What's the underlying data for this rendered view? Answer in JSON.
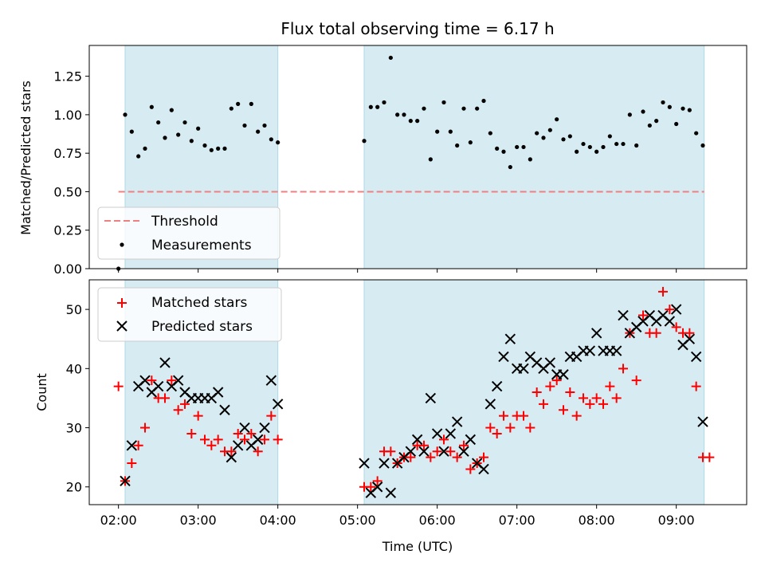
{
  "chart_data": [
    {
      "type": "scatter",
      "title": "Flux total observing time = 6.17 h",
      "xlabel": "",
      "ylabel": "Matched/Predicted stars",
      "xlim": [
        "01:38",
        "09:53"
      ],
      "ylim": [
        0,
        1.45
      ],
      "yticks": [
        "0.00",
        "0.25",
        "0.50",
        "0.75",
        "1.00",
        "1.25"
      ],
      "shaded_intervals": [
        [
          "02:05",
          "04:00"
        ],
        [
          "05:05",
          "09:21"
        ]
      ],
      "threshold": {
        "name": "Threshold",
        "value": 0.5,
        "x_range": [
          "02:00",
          "09:21"
        ],
        "color": "#f08080"
      },
      "legend": {
        "position": "lower-left",
        "entries": [
          "Threshold",
          "Measurements"
        ]
      },
      "series": [
        {
          "name": "Measurements",
          "color": "#000000",
          "marker": "dot",
          "x": [
            "02:00",
            "02:05",
            "02:10",
            "02:15",
            "02:20",
            "02:25",
            "02:30",
            "02:35",
            "02:40",
            "02:45",
            "02:50",
            "02:55",
            "03:00",
            "03:05",
            "03:10",
            "03:15",
            "03:20",
            "03:25",
            "03:30",
            "03:35",
            "03:40",
            "03:45",
            "03:50",
            "03:55",
            "04:00",
            "05:05",
            "05:10",
            "05:15",
            "05:20",
            "05:25",
            "05:30",
            "05:35",
            "05:40",
            "05:45",
            "05:50",
            "05:55",
            "06:00",
            "06:05",
            "06:10",
            "06:15",
            "06:20",
            "06:25",
            "06:30",
            "06:35",
            "06:40",
            "06:45",
            "06:50",
            "06:55",
            "07:00",
            "07:05",
            "07:10",
            "07:15",
            "07:20",
            "07:25",
            "07:30",
            "07:35",
            "07:40",
            "07:45",
            "07:50",
            "07:55",
            "08:00",
            "08:05",
            "08:10",
            "08:15",
            "08:20",
            "08:25",
            "08:30",
            "08:35",
            "08:40",
            "08:45",
            "08:50",
            "08:55",
            "09:00",
            "09:05",
            "09:10",
            "09:15",
            "09:20"
          ],
          "y": [
            0.0,
            1.0,
            0.89,
            0.73,
            0.78,
            1.05,
            0.95,
            0.85,
            1.03,
            0.87,
            0.95,
            0.83,
            0.91,
            0.8,
            0.77,
            0.78,
            0.78,
            1.04,
            1.07,
            0.93,
            1.07,
            0.89,
            0.93,
            0.84,
            0.82,
            0.83,
            1.05,
            1.05,
            1.08,
            1.37,
            1.0,
            1.0,
            0.96,
            0.96,
            1.04,
            0.71,
            0.89,
            1.08,
            0.89,
            0.8,
            1.04,
            0.82,
            1.04,
            1.09,
            0.88,
            0.78,
            0.76,
            0.66,
            0.79,
            0.79,
            0.71,
            0.88,
            0.85,
            0.9,
            0.97,
            0.84,
            0.86,
            0.76,
            0.81,
            0.79,
            0.76,
            0.79,
            0.86,
            0.81,
            0.81,
            1.0,
            0.8,
            1.02,
            0.93,
            0.96,
            1.08,
            1.05,
            0.94,
            1.04,
            1.03,
            0.88,
            0.8
          ]
        }
      ]
    },
    {
      "type": "scatter",
      "title": "",
      "xlabel": "Time (UTC)",
      "ylabel": "Count",
      "xlim": [
        "01:38",
        "09:53"
      ],
      "ylim": [
        17,
        55
      ],
      "xticks": [
        "02:00",
        "03:00",
        "04:00",
        "05:00",
        "06:00",
        "07:00",
        "08:00",
        "09:00"
      ],
      "yticks": [
        "20",
        "30",
        "40",
        "50"
      ],
      "shaded_intervals": [
        [
          "02:05",
          "04:00"
        ],
        [
          "05:05",
          "09:21"
        ]
      ],
      "legend": {
        "position": "top-left",
        "entries": [
          "Matched stars",
          "Predicted stars"
        ]
      },
      "x": [
        "02:00",
        "02:05",
        "02:10",
        "02:15",
        "02:20",
        "02:25",
        "02:30",
        "02:35",
        "02:40",
        "02:45",
        "02:50",
        "02:55",
        "03:00",
        "03:05",
        "03:10",
        "03:15",
        "03:20",
        "03:25",
        "03:30",
        "03:35",
        "03:40",
        "03:45",
        "03:50",
        "03:55",
        "04:00",
        "05:05",
        "05:10",
        "05:15",
        "05:20",
        "05:25",
        "05:30",
        "05:35",
        "05:40",
        "05:45",
        "05:50",
        "05:55",
        "06:00",
        "06:05",
        "06:10",
        "06:15",
        "06:20",
        "06:25",
        "06:30",
        "06:35",
        "06:40",
        "06:45",
        "06:50",
        "06:55",
        "07:00",
        "07:05",
        "07:10",
        "07:15",
        "07:20",
        "07:25",
        "07:30",
        "07:35",
        "07:40",
        "07:45",
        "07:50",
        "07:55",
        "08:00",
        "08:05",
        "08:10",
        "08:15",
        "08:20",
        "08:25",
        "08:30",
        "08:35",
        "08:40",
        "08:45",
        "08:50",
        "08:55",
        "09:00",
        "09:05",
        "09:10",
        "09:15",
        "09:20",
        "09:25"
      ],
      "series": [
        {
          "name": "Matched stars",
          "color": "#ff0000",
          "marker": "plus",
          "values": [
            37,
            21,
            24,
            27,
            30,
            38,
            35,
            35,
            38,
            33,
            34,
            29,
            32,
            28,
            27,
            28,
            26,
            26,
            29,
            28,
            29,
            26,
            28,
            32,
            28,
            20,
            20,
            21,
            26,
            26,
            24,
            25,
            25,
            27,
            27,
            25,
            26,
            28,
            26,
            25,
            27,
            23,
            24,
            25,
            30,
            29,
            32,
            30,
            32,
            32,
            30,
            36,
            34,
            37,
            38,
            33,
            36,
            32,
            35,
            34,
            35,
            34,
            37,
            35,
            40,
            46,
            38,
            49,
            46,
            46,
            53,
            50,
            47,
            46,
            46,
            37,
            25,
            25
          ]
        },
        {
          "name": "Predicted stars",
          "color": "#000000",
          "marker": "x",
          "values": [
            null,
            21,
            27,
            37,
            38,
            36,
            37,
            41,
            37,
            38,
            36,
            35,
            35,
            35,
            35,
            36,
            33,
            25,
            27,
            30,
            27,
            28,
            30,
            38,
            34,
            24,
            19,
            20,
            24,
            19,
            24,
            25,
            26,
            28,
            26,
            35,
            29,
            26,
            29,
            31,
            26,
            28,
            24,
            23,
            34,
            37,
            42,
            45,
            40,
            40,
            42,
            41,
            40,
            41,
            39,
            39,
            42,
            42,
            43,
            43,
            46,
            43,
            43,
            43,
            49,
            46,
            47,
            48,
            49,
            48,
            49,
            48,
            50,
            44,
            45,
            42,
            31,
            null
          ]
        }
      ]
    }
  ]
}
